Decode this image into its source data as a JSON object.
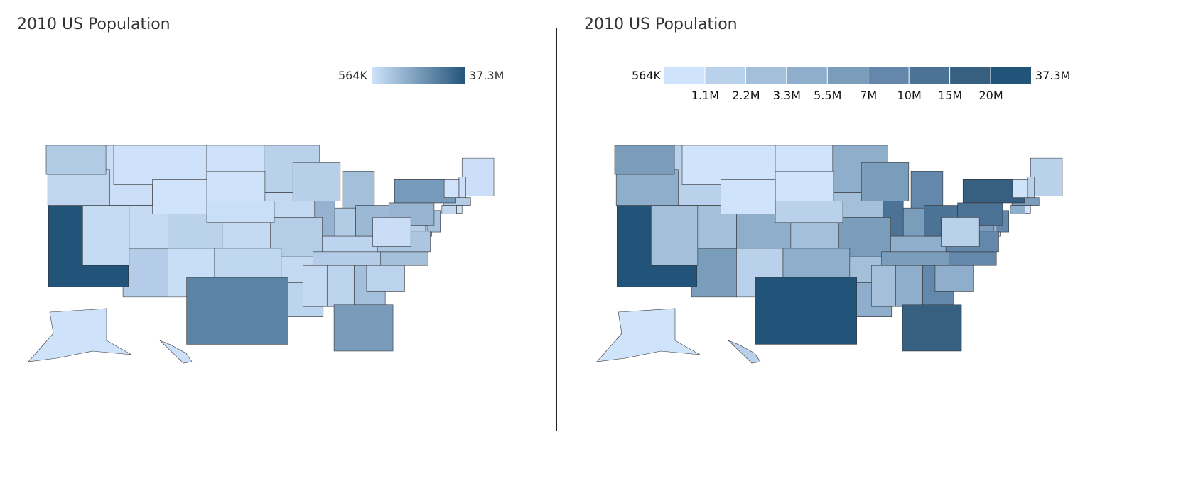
{
  "left": {
    "title": "2010 US Population",
    "legend": {
      "type": "gradient",
      "min_label": "564K",
      "max_label": "37.3M",
      "colors": [
        "#cfe3fb",
        "#22547a"
      ]
    }
  },
  "right": {
    "title": "2010 US Population",
    "legend": {
      "type": "threshold",
      "min_label": "564K",
      "max_label": "37.3M",
      "thresholds": [
        "1.1M",
        "2.2M",
        "3.3M",
        "5.5M",
        "7M",
        "10M",
        "15M",
        "20M"
      ],
      "threshold_values": [
        1100000,
        2200000,
        3300000,
        5500000,
        7000000,
        10000000,
        15000000,
        20000000
      ],
      "colors": [
        "#cfe3fb",
        "#b9d1ea",
        "#a3bfd9",
        "#8eaecb",
        "#7a9dbb",
        "#6488ab",
        "#4c7396",
        "#375f80",
        "#22547a"
      ]
    }
  },
  "chart_data": {
    "type": "choropleth",
    "variable": "2010 population",
    "domain": [
      563626,
      37253956
    ],
    "values": {
      "AL": 4779736,
      "AK": 710231,
      "AZ": 6392017,
      "AR": 2915918,
      "CA": 37253956,
      "CO": 5029196,
      "CT": 3574097,
      "DE": 897934,
      "DC": 601723,
      "FL": 18801310,
      "GA": 9687653,
      "HI": 1360301,
      "ID": 1567582,
      "IL": 12830632,
      "IN": 6483802,
      "IA": 3046355,
      "KS": 2853118,
      "KY": 4339367,
      "LA": 4533372,
      "ME": 1328361,
      "MD": 5773552,
      "MA": 6547629,
      "MI": 9883640,
      "MN": 5303925,
      "MS": 2967297,
      "MO": 5988927,
      "MT": 989415,
      "NE": 1826341,
      "NV": 2700551,
      "NH": 1316470,
      "NJ": 8791894,
      "NM": 2059179,
      "NY": 19378102,
      "NC": 9535483,
      "ND": 672591,
      "OH": 11536504,
      "OK": 3751351,
      "OR": 3831074,
      "PA": 12702379,
      "RI": 1052567,
      "SC": 4625364,
      "SD": 814180,
      "TN": 6346105,
      "TX": 25145561,
      "UT": 2763885,
      "VT": 625741,
      "VA": 8001024,
      "WA": 6724540,
      "WV": 1852994,
      "WI": 5686986,
      "WY": 563626
    }
  }
}
